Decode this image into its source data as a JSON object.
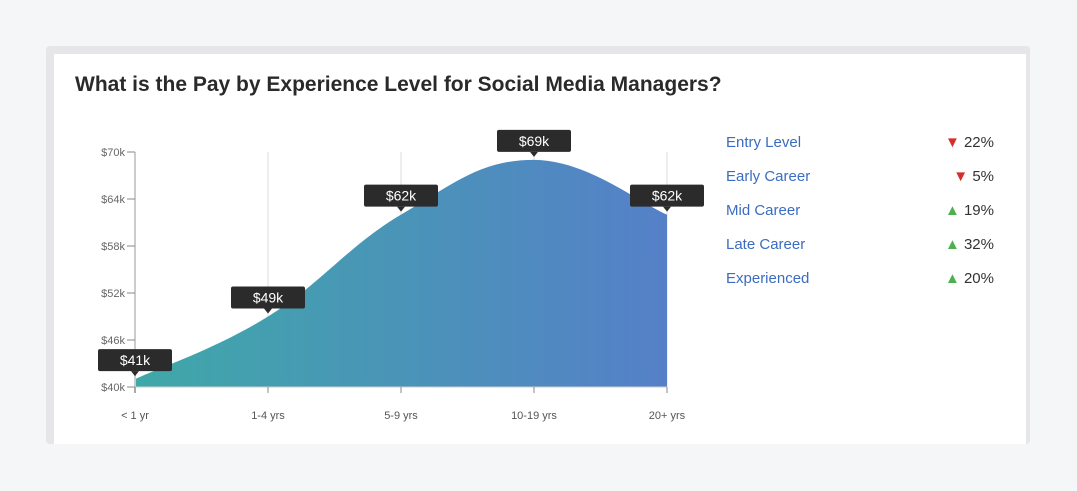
{
  "title": "What is the Pay by Experience Level for Social Media Managers?",
  "chart_data": {
    "type": "area",
    "title": "What is the Pay by Experience Level for Social Media Managers?",
    "categories": [
      "< 1 yr",
      "1-4 yrs",
      "5-9 yrs",
      "10-19 yrs",
      "20+ yrs"
    ],
    "values": [
      41,
      49,
      62,
      69,
      62
    ],
    "data_labels": [
      "$41k",
      "$49k",
      "$62k",
      "$69k",
      "$62k"
    ],
    "yticks": [
      40,
      46,
      52,
      58,
      64,
      70
    ],
    "ytick_labels": [
      "$40k",
      "$46k",
      "$52k",
      "$58k",
      "$64k",
      "$70k"
    ],
    "ylim": [
      40,
      70
    ],
    "colors": [
      "#3fa8a8",
      "#5580c8"
    ]
  },
  "legend": [
    {
      "label": "Entry Level",
      "direction": "down",
      "value": "22%"
    },
    {
      "label": "Early Career",
      "direction": "down",
      "value": "5%"
    },
    {
      "label": "Mid Career",
      "direction": "up",
      "value": "19%"
    },
    {
      "label": "Late Career",
      "direction": "up",
      "value": "32%"
    },
    {
      "label": "Experienced",
      "direction": "up",
      "value": "20%"
    }
  ]
}
